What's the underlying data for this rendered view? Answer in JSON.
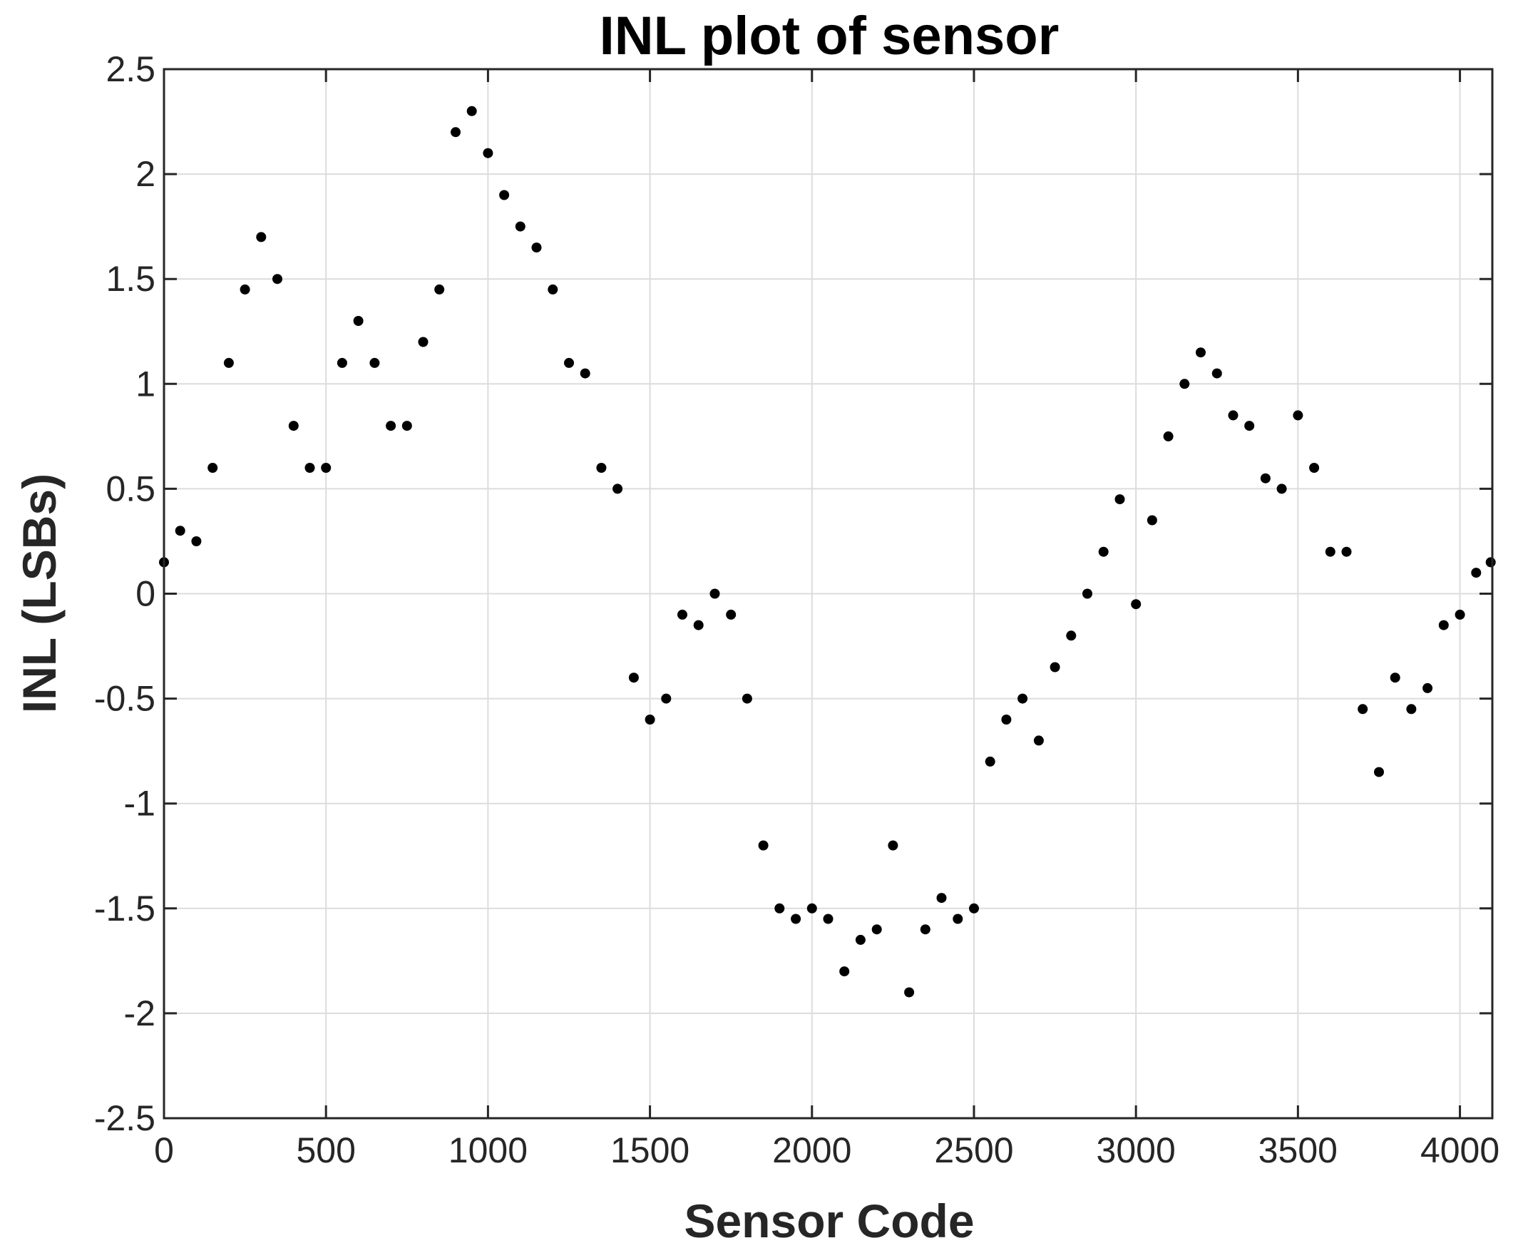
{
  "chart_data": {
    "type": "scatter",
    "title": "INL plot of sensor",
    "xlabel": "Sensor Code",
    "ylabel": "INL (LSBs)",
    "xlim": [
      0,
      4100
    ],
    "ylim": [
      -2.5,
      2.5
    ],
    "xticks": [
      0,
      500,
      1000,
      1500,
      2000,
      2500,
      3000,
      3500,
      4000
    ],
    "yticks": [
      2.5,
      2,
      1.5,
      1,
      0.5,
      0,
      -0.5,
      -1,
      -1.5,
      -2,
      -2.5
    ],
    "xtick_labels": [
      "0",
      "500",
      "1000",
      "1500",
      "2000",
      "2500",
      "3000",
      "3500",
      "4000"
    ],
    "ytick_labels": [
      "2.5",
      "2",
      "1.5",
      "1",
      "0.5",
      "0",
      "-0.5",
      "-1",
      "-1.5",
      "-2",
      "-2.5"
    ],
    "grid": true,
    "marker_color": "#000000",
    "series": [
      {
        "x": [
          0,
          50,
          100,
          150,
          200,
          250,
          300,
          350,
          400,
          450,
          500,
          550,
          600,
          650,
          700,
          750,
          800,
          850,
          900,
          950,
          1000,
          1050,
          1100,
          1150,
          1200,
          1250,
          1300,
          1350,
          1400,
          1450,
          1500,
          1550,
          1600,
          1650,
          1700,
          1750,
          1800,
          1850,
          1900,
          1950,
          2000,
          2050,
          2100,
          2150,
          2200,
          2250,
          2300,
          2350,
          2400,
          2450,
          2500,
          2550,
          2600,
          2650,
          2700,
          2750,
          2800,
          2850,
          2900,
          2950,
          3000,
          3050,
          3100,
          3150,
          3200,
          3250,
          3300,
          3350,
          3400,
          3450,
          3500,
          3550,
          3600,
          3650,
          3700,
          3750,
          3800,
          3850,
          3900,
          3950,
          4000,
          4050,
          4095
        ],
        "y": [
          0.15,
          0.3,
          0.25,
          0.6,
          1.1,
          1.45,
          1.7,
          1.5,
          0.8,
          0.6,
          0.6,
          1.1,
          1.3,
          1.1,
          0.8,
          0.8,
          1.2,
          1.45,
          2.2,
          2.3,
          2.1,
          1.9,
          1.75,
          1.65,
          1.45,
          1.1,
          1.05,
          0.6,
          0.5,
          -0.4,
          -0.6,
          -0.5,
          -0.1,
          -0.15,
          0.0,
          -0.1,
          -0.5,
          -1.2,
          -1.5,
          -1.55,
          -1.5,
          -1.55,
          -1.8,
          -1.65,
          -1.6,
          -1.2,
          -1.9,
          -1.6,
          -1.45,
          -1.55,
          -1.5,
          -0.8,
          -0.6,
          -0.5,
          -0.7,
          -0.35,
          -0.2,
          0.0,
          0.2,
          0.45,
          -0.05,
          0.35,
          0.75,
          1.0,
          1.15,
          1.05,
          0.85,
          0.8,
          0.55,
          0.5,
          0.85,
          0.6,
          0.2,
          0.2,
          -0.55,
          -0.85,
          -0.4,
          -0.55,
          -0.45,
          -0.15,
          -0.1,
          0.1,
          0.15
        ]
      }
    ]
  }
}
